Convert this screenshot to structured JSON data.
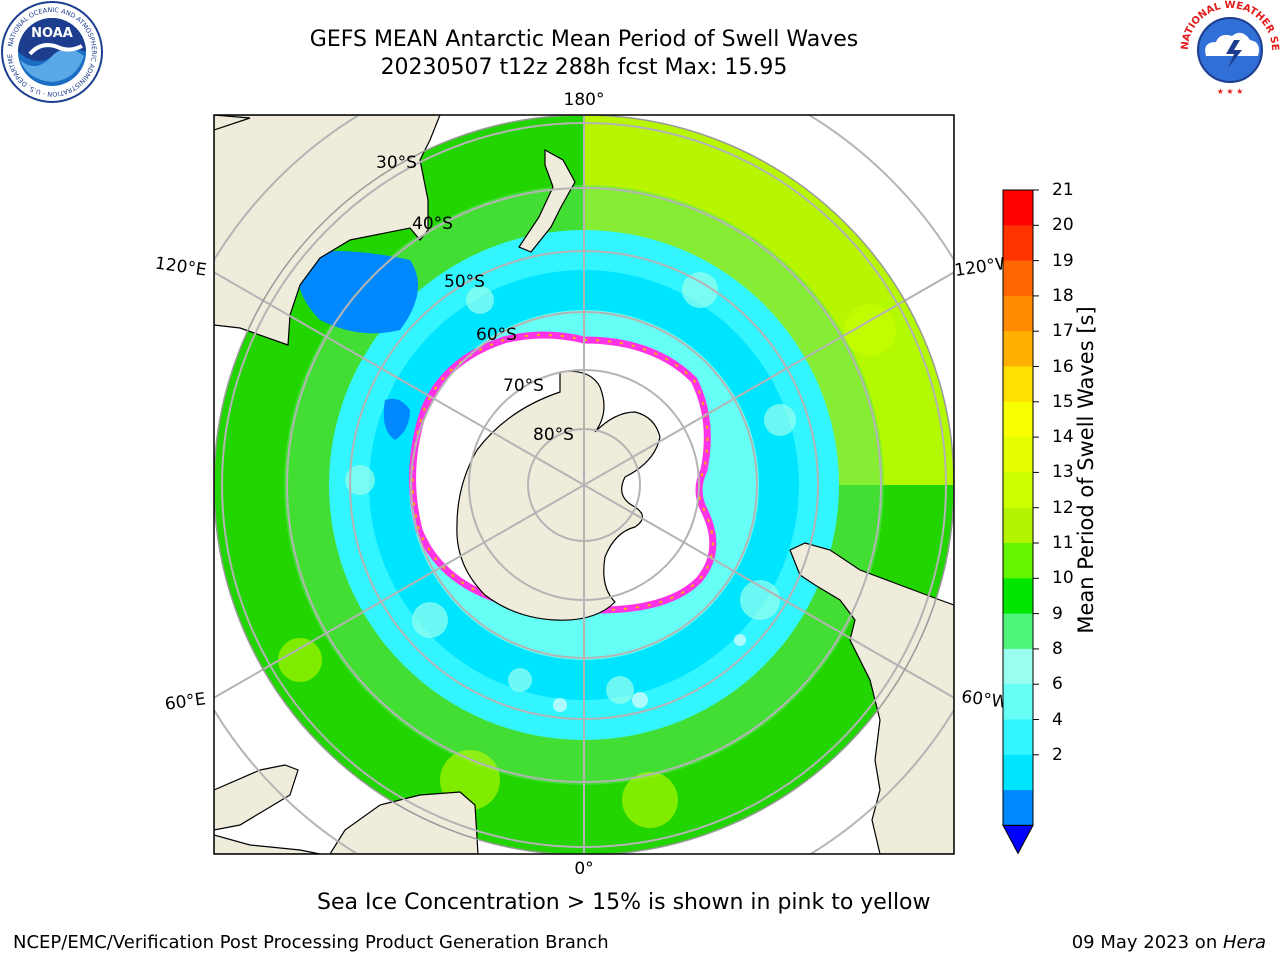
{
  "title": {
    "line1": "GEFS MEAN Antarctic Mean Period of Swell Waves",
    "line2": "20230507 t12z 288h fcst   Max: 15.95"
  },
  "logos": {
    "left": {
      "name": "noaa-logo",
      "text": "NOAA",
      "ring_text": "NATIONAL OCEANIC AND ATMOSPHERIC ADMINISTRATION · U.S. DEPARTMENT OF COMMERCE"
    },
    "right": {
      "name": "nws-logo",
      "ring_text": "NATIONAL WEATHER SERVICE"
    }
  },
  "map": {
    "projection": "south polar stereographic",
    "lat_labels": [
      "30°S",
      "40°S",
      "50°S",
      "60°S",
      "70°S",
      "80°S"
    ],
    "lon_labels": {
      "top": "180°",
      "bottom": "0°",
      "left_upper": "120°E",
      "left_lower": "60°E",
      "right_upper": "120°W",
      "right_lower": "60°W"
    },
    "colors": {
      "land": "#efecdc",
      "ice": "#ffffff",
      "grid": "#b4b4b4",
      "ice_edge": "#ff33e6"
    }
  },
  "colorbar": {
    "label": "Mean Period of Swell Waves [s]",
    "ticks": [
      "21",
      "20",
      "19",
      "18",
      "17",
      "16",
      "15",
      "14",
      "13",
      "12",
      "11",
      "10",
      "9",
      "8",
      "6",
      "4",
      "2"
    ],
    "colors": [
      "#ff0000",
      "#ff3300",
      "#ff6600",
      "#ff8c00",
      "#ffb000",
      "#ffe000",
      "#f7ff00",
      "#e6ff00",
      "#ccff00",
      "#b3f500",
      "#66f500",
      "#00e600",
      "#4ff57a",
      "#99ffee",
      "#66fff5",
      "#33f5ff",
      "#00e5ff",
      "#0088ff"
    ],
    "extend_color": "#0000ff"
  },
  "caption": "Sea Ice Concentration > 15% is shown in pink to yellow",
  "footer": {
    "left": "NCEP/EMC/Verification Post Processing Product Generation Branch",
    "right_date": "09 May 2023 on ",
    "right_host": "Hera"
  }
}
